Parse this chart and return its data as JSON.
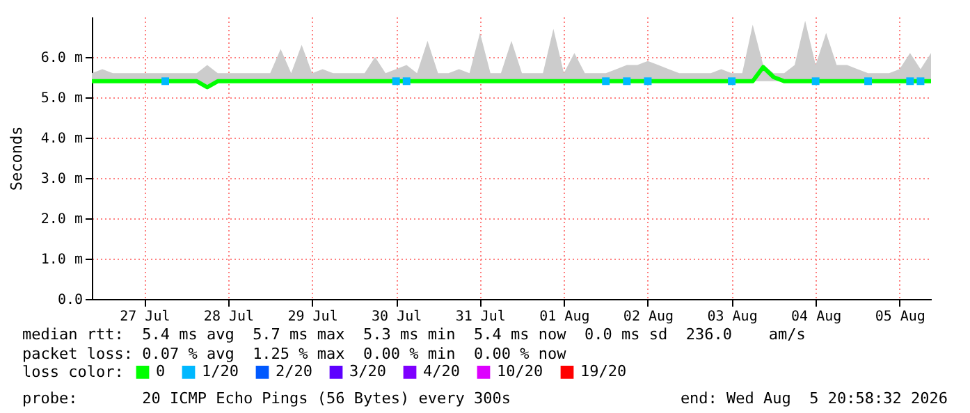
{
  "chart_data": {
    "type": "line",
    "ylabel": "Seconds",
    "legend_title": "loss color:",
    "legend": "bottom",
    "grid": true,
    "xlim": [
      "2026-07-26T21:00",
      "2026-08-05T21:00"
    ],
    "xticks": [
      {
        "value": "2026-07-27T12:00",
        "label": "27 Jul"
      },
      {
        "value": "2026-07-28T12:00",
        "label": "28 Jul"
      },
      {
        "value": "2026-07-29T12:00",
        "label": "29 Jul"
      },
      {
        "value": "2026-07-30T12:00",
        "label": "30 Jul"
      },
      {
        "value": "2026-07-31T12:00",
        "label": "31 Jul"
      },
      {
        "value": "2026-08-01T12:00",
        "label": "01 Aug"
      },
      {
        "value": "2026-08-02T12:00",
        "label": "02 Aug"
      },
      {
        "value": "2026-08-03T12:00",
        "label": "03 Aug"
      },
      {
        "value": "2026-08-04T12:00",
        "label": "04 Aug"
      },
      {
        "value": "2026-08-05T12:00",
        "label": "05 Aug"
      }
    ],
    "ylim": [
      0,
      7
    ],
    "yticks": [
      {
        "value": 0,
        "label": "0.0"
      },
      {
        "value": 1,
        "label": "1.0 m"
      },
      {
        "value": 2,
        "label": "2.0 m"
      },
      {
        "value": 3,
        "label": "3.0 m"
      },
      {
        "value": 4,
        "label": "4.0 m"
      },
      {
        "value": 5,
        "label": "5.0 m"
      },
      {
        "value": 6,
        "label": "6.0 m"
      }
    ],
    "x": [
      "2026-07-26T21:00",
      "2026-07-27T00:00",
      "2026-07-27T03:00",
      "2026-07-27T06:00",
      "2026-07-27T09:00",
      "2026-07-27T12:00",
      "2026-07-27T15:00",
      "2026-07-27T18:00",
      "2026-07-27T21:00",
      "2026-07-28T00:00",
      "2026-07-28T03:00",
      "2026-07-28T06:00",
      "2026-07-28T09:00",
      "2026-07-28T12:00",
      "2026-07-28T15:00",
      "2026-07-28T18:00",
      "2026-07-28T21:00",
      "2026-07-29T00:00",
      "2026-07-29T03:00",
      "2026-07-29T06:00",
      "2026-07-29T09:00",
      "2026-07-29T12:00",
      "2026-07-29T15:00",
      "2026-07-29T18:00",
      "2026-07-29T21:00",
      "2026-07-30T00:00",
      "2026-07-30T03:00",
      "2026-07-30T06:00",
      "2026-07-30T09:00",
      "2026-07-30T12:00",
      "2026-07-30T15:00",
      "2026-07-30T18:00",
      "2026-07-30T21:00",
      "2026-07-31T00:00",
      "2026-07-31T03:00",
      "2026-07-31T06:00",
      "2026-07-31T09:00",
      "2026-07-31T12:00",
      "2026-07-31T15:00",
      "2026-07-31T18:00",
      "2026-07-31T21:00",
      "2026-08-01T00:00",
      "2026-08-01T03:00",
      "2026-08-01T06:00",
      "2026-08-01T09:00",
      "2026-08-01T12:00",
      "2026-08-01T15:00",
      "2026-08-01T18:00",
      "2026-08-01T21:00",
      "2026-08-02T00:00",
      "2026-08-02T03:00",
      "2026-08-02T06:00",
      "2026-08-02T09:00",
      "2026-08-02T12:00",
      "2026-08-02T15:00",
      "2026-08-02T18:00",
      "2026-08-02T21:00",
      "2026-08-03T00:00",
      "2026-08-03T03:00",
      "2026-08-03T06:00",
      "2026-08-03T09:00",
      "2026-08-03T12:00",
      "2026-08-03T15:00",
      "2026-08-03T18:00",
      "2026-08-03T21:00",
      "2026-08-04T00:00",
      "2026-08-04T03:00",
      "2026-08-04T06:00",
      "2026-08-04T09:00",
      "2026-08-04T12:00",
      "2026-08-04T15:00",
      "2026-08-04T18:00",
      "2026-08-04T21:00",
      "2026-08-05T00:00",
      "2026-08-05T03:00",
      "2026-08-05T06:00",
      "2026-08-05T09:00",
      "2026-08-05T12:00",
      "2026-08-05T15:00",
      "2026-08-05T18:00",
      "2026-08-05T21:00"
    ],
    "series": [
      {
        "name": "0",
        "color": "#00ff00",
        "values": [
          5.4,
          5.4,
          5.4,
          5.4,
          5.4,
          5.4,
          5.4,
          5.4,
          5.4,
          5.4,
          5.4,
          5.25,
          5.4,
          5.4,
          5.4,
          5.4,
          5.4,
          5.4,
          5.4,
          5.4,
          5.4,
          5.4,
          5.4,
          5.4,
          5.4,
          5.4,
          5.4,
          5.4,
          5.4,
          5.4,
          5.4,
          5.4,
          5.4,
          5.4,
          5.4,
          5.4,
          5.4,
          5.4,
          5.4,
          5.4,
          5.4,
          5.4,
          5.4,
          5.4,
          5.4,
          5.4,
          5.4,
          5.4,
          5.4,
          5.4,
          5.4,
          5.4,
          5.4,
          5.4,
          5.4,
          5.4,
          5.4,
          5.4,
          5.4,
          5.4,
          5.4,
          5.4,
          5.4,
          5.4,
          5.75,
          5.5,
          5.4,
          5.4,
          5.4,
          5.4,
          5.4,
          5.4,
          5.4,
          5.4,
          5.4,
          5.4,
          5.4,
          5.4,
          5.4,
          5.4,
          5.4
        ],
        "lower": [
          5.4,
          5.4,
          5.4,
          5.4,
          5.4,
          5.4,
          5.4,
          5.4,
          5.4,
          5.4,
          5.4,
          5.25,
          5.4,
          5.4,
          5.4,
          5.4,
          5.4,
          5.4,
          5.4,
          5.4,
          5.4,
          5.4,
          5.4,
          5.4,
          5.4,
          5.4,
          5.4,
          5.4,
          5.4,
          5.4,
          5.4,
          5.4,
          5.4,
          5.4,
          5.4,
          5.4,
          5.4,
          5.4,
          5.4,
          5.4,
          5.4,
          5.4,
          5.4,
          5.4,
          5.4,
          5.4,
          5.4,
          5.4,
          5.4,
          5.4,
          5.4,
          5.4,
          5.4,
          5.4,
          5.4,
          5.4,
          5.4,
          5.4,
          5.4,
          5.4,
          5.4,
          5.4,
          5.4,
          5.4,
          5.4,
          5.4,
          5.4,
          5.4,
          5.4,
          5.4,
          5.4,
          5.4,
          5.4,
          5.4,
          5.4,
          5.4,
          5.4,
          5.4,
          5.4,
          5.4,
          5.4
        ],
        "upper": [
          5.6,
          5.7,
          5.6,
          5.6,
          5.6,
          5.6,
          5.6,
          5.6,
          5.6,
          5.6,
          5.6,
          5.8,
          5.6,
          5.6,
          5.6,
          5.6,
          5.6,
          5.6,
          6.2,
          5.6,
          6.3,
          5.6,
          5.7,
          5.6,
          5.6,
          5.6,
          5.6,
          6.0,
          5.6,
          5.7,
          5.8,
          5.6,
          6.4,
          5.6,
          5.6,
          5.7,
          5.6,
          6.6,
          5.6,
          5.6,
          6.4,
          5.6,
          5.6,
          5.6,
          6.7,
          5.6,
          6.1,
          5.6,
          5.6,
          5.6,
          5.7,
          5.8,
          5.8,
          5.9,
          5.8,
          5.7,
          5.6,
          5.6,
          5.6,
          5.6,
          5.7,
          5.6,
          5.6,
          6.8,
          5.8,
          5.6,
          5.6,
          5.8,
          6.9,
          5.8,
          6.6,
          5.8,
          5.8,
          5.7,
          5.6,
          5.6,
          5.6,
          5.7,
          6.1,
          5.7,
          6.1
        ]
      },
      {
        "name": "1/20",
        "type": "scatter",
        "marker": "square",
        "color": "#00b8ff",
        "values": [
          null,
          null,
          null,
          null,
          null,
          null,
          null,
          5.4,
          null,
          null,
          null,
          null,
          null,
          null,
          null,
          null,
          null,
          null,
          null,
          null,
          null,
          null,
          null,
          null,
          null,
          null,
          null,
          null,
          null,
          5.4,
          5.4,
          null,
          null,
          null,
          null,
          null,
          null,
          null,
          null,
          null,
          null,
          null,
          null,
          null,
          null,
          null,
          null,
          null,
          null,
          5.4,
          null,
          5.4,
          null,
          5.4,
          null,
          null,
          null,
          null,
          null,
          null,
          null,
          5.4,
          null,
          null,
          null,
          null,
          null,
          null,
          null,
          5.4,
          null,
          null,
          null,
          null,
          5.4,
          null,
          null,
          null,
          5.4,
          5.4,
          null
        ]
      },
      {
        "name": "2/20",
        "type": "scatter",
        "marker": "square",
        "color": "#0059ff",
        "values": [
          null,
          null,
          null,
          null,
          null,
          null,
          null,
          null,
          null,
          null,
          null,
          null,
          null,
          null,
          null,
          null,
          null,
          null,
          null,
          null,
          null,
          null,
          null,
          null,
          null,
          null,
          null,
          null,
          null,
          null,
          null,
          null,
          null,
          null,
          null,
          null,
          null,
          null,
          null,
          null,
          null,
          null,
          null,
          null,
          null,
          null,
          null,
          null,
          null,
          null,
          null,
          null,
          null,
          null,
          null,
          null,
          null,
          null,
          null,
          null,
          null,
          null,
          null,
          null,
          null,
          null,
          null,
          null,
          null,
          null,
          null,
          null,
          null,
          null,
          null,
          null,
          null,
          null,
          null,
          null,
          null
        ]
      },
      {
        "name": "3/20",
        "type": "scatter",
        "marker": "square",
        "color": "#5e00ff",
        "values": [
          null,
          null,
          null,
          null,
          null,
          null,
          null,
          null,
          null,
          null,
          null,
          null,
          null,
          null,
          null,
          null,
          null,
          null,
          null,
          null,
          null,
          null,
          null,
          null,
          null,
          null,
          null,
          null,
          null,
          null,
          null,
          null,
          null,
          null,
          null,
          null,
          null,
          null,
          null,
          null,
          null,
          null,
          null,
          null,
          null,
          null,
          null,
          null,
          null,
          null,
          null,
          null,
          null,
          null,
          null,
          null,
          null,
          null,
          null,
          null,
          null,
          null,
          null,
          null,
          null,
          null,
          null,
          null,
          null,
          null,
          null,
          null,
          null,
          null,
          null,
          null,
          null,
          null,
          null,
          null,
          null
        ]
      },
      {
        "name": "4/20",
        "type": "scatter",
        "marker": "square",
        "color": "#7e00ff",
        "values": [
          null,
          null,
          null,
          null,
          null,
          null,
          null,
          null,
          null,
          null,
          null,
          null,
          null,
          null,
          null,
          null,
          null,
          null,
          null,
          null,
          null,
          null,
          null,
          null,
          null,
          null,
          null,
          null,
          null,
          null,
          null,
          null,
          null,
          null,
          null,
          null,
          null,
          null,
          null,
          null,
          null,
          null,
          null,
          null,
          null,
          null,
          null,
          null,
          null,
          null,
          null,
          null,
          null,
          null,
          null,
          null,
          null,
          null,
          null,
          null,
          null,
          null,
          null,
          null,
          null,
          null,
          null,
          null,
          null,
          null,
          null,
          null,
          null,
          null,
          null,
          null,
          null,
          null,
          null,
          null,
          null
        ]
      },
      {
        "name": "10/20",
        "type": "scatter",
        "marker": "square",
        "color": "#dd00ff",
        "values": [
          null,
          null,
          null,
          null,
          null,
          null,
          null,
          null,
          null,
          null,
          null,
          null,
          null,
          null,
          null,
          null,
          null,
          null,
          null,
          null,
          null,
          null,
          null,
          null,
          null,
          null,
          null,
          null,
          null,
          null,
          null,
          null,
          null,
          null,
          null,
          null,
          null,
          null,
          null,
          null,
          null,
          null,
          null,
          null,
          null,
          null,
          null,
          null,
          null,
          null,
          null,
          null,
          null,
          null,
          null,
          null,
          null,
          null,
          null,
          null,
          null,
          null,
          null,
          null,
          null,
          null,
          null,
          null,
          null,
          null,
          null,
          null,
          null,
          null,
          null,
          null,
          null,
          null,
          null,
          null,
          null
        ]
      },
      {
        "name": "19/20",
        "type": "scatter",
        "marker": "square",
        "color": "#ff0000",
        "values": [
          null,
          null,
          null,
          null,
          null,
          null,
          null,
          null,
          null,
          null,
          null,
          null,
          null,
          null,
          null,
          null,
          null,
          null,
          null,
          null,
          null,
          null,
          null,
          null,
          null,
          null,
          null,
          null,
          null,
          null,
          null,
          null,
          null,
          null,
          null,
          null,
          null,
          null,
          null,
          null,
          null,
          null,
          null,
          null,
          null,
          null,
          null,
          null,
          null,
          null,
          null,
          null,
          null,
          null,
          null,
          null,
          null,
          null,
          null,
          null,
          null,
          null,
          null,
          null,
          null,
          null,
          null,
          null,
          null,
          null,
          null,
          null,
          null,
          null,
          null,
          null,
          null,
          null,
          null,
          null,
          null
        ]
      }
    ],
    "annotations": [
      "median rtt:  5.4 ms avg  5.7 ms max  5.3 ms min  5.4 ms now  0.0 ms sd  236.0    am/s",
      "packet loss: 0.07 % avg  1.25 % max  0.00 % min  0.00 % now",
      "probe:       20 ICMP Echo Pings (56 Bytes) every 300s",
      "end: Wed Aug  5 20:58:32 2026"
    ]
  }
}
